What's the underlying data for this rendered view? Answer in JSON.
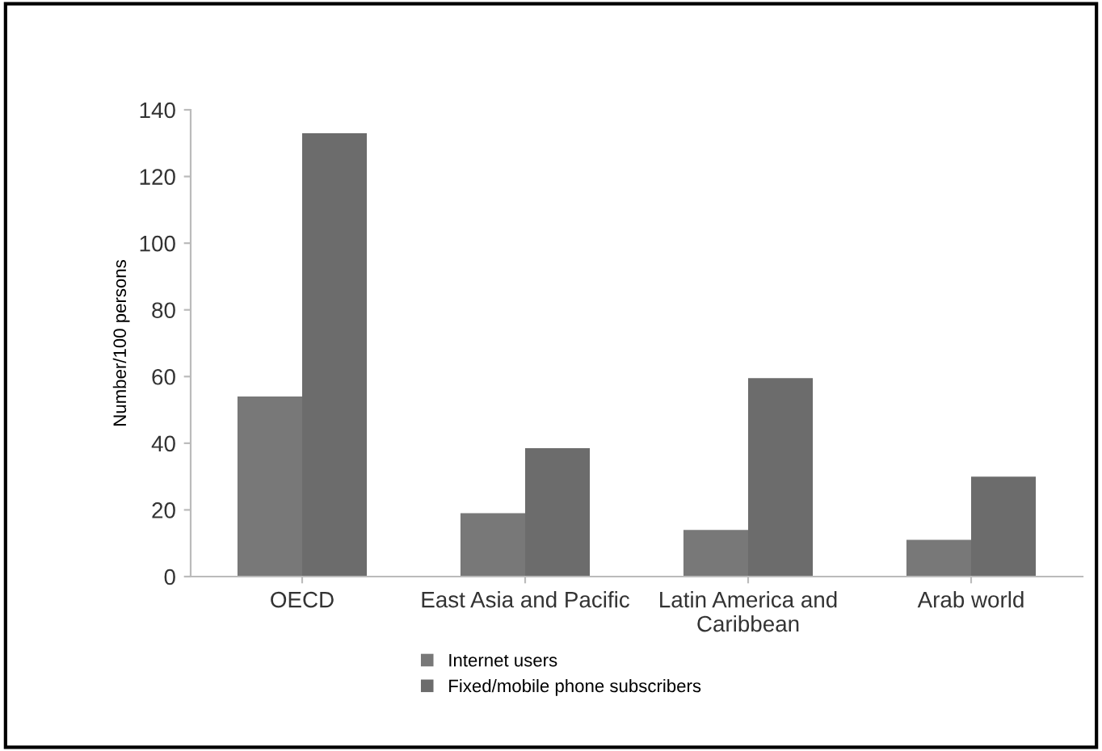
{
  "chart_data": {
    "type": "bar",
    "ylabel": "Number/100 persons",
    "categories": [
      "OECD",
      "East Asia and Pacific",
      "Latin America and Caribbean",
      "Arab world"
    ],
    "series": [
      {
        "name": "Internet users",
        "color": "#787878",
        "values": [
          54,
          19,
          14,
          11
        ]
      },
      {
        "name": "Fixed/mobile phone subscribers",
        "color": "#6c6c6c",
        "values": [
          133,
          38.5,
          59.5,
          30
        ]
      }
    ],
    "ylim": [
      0,
      140
    ],
    "yticks": [
      0,
      20,
      40,
      60,
      80,
      100,
      120,
      140
    ],
    "grid": false,
    "legend": "bottom"
  }
}
